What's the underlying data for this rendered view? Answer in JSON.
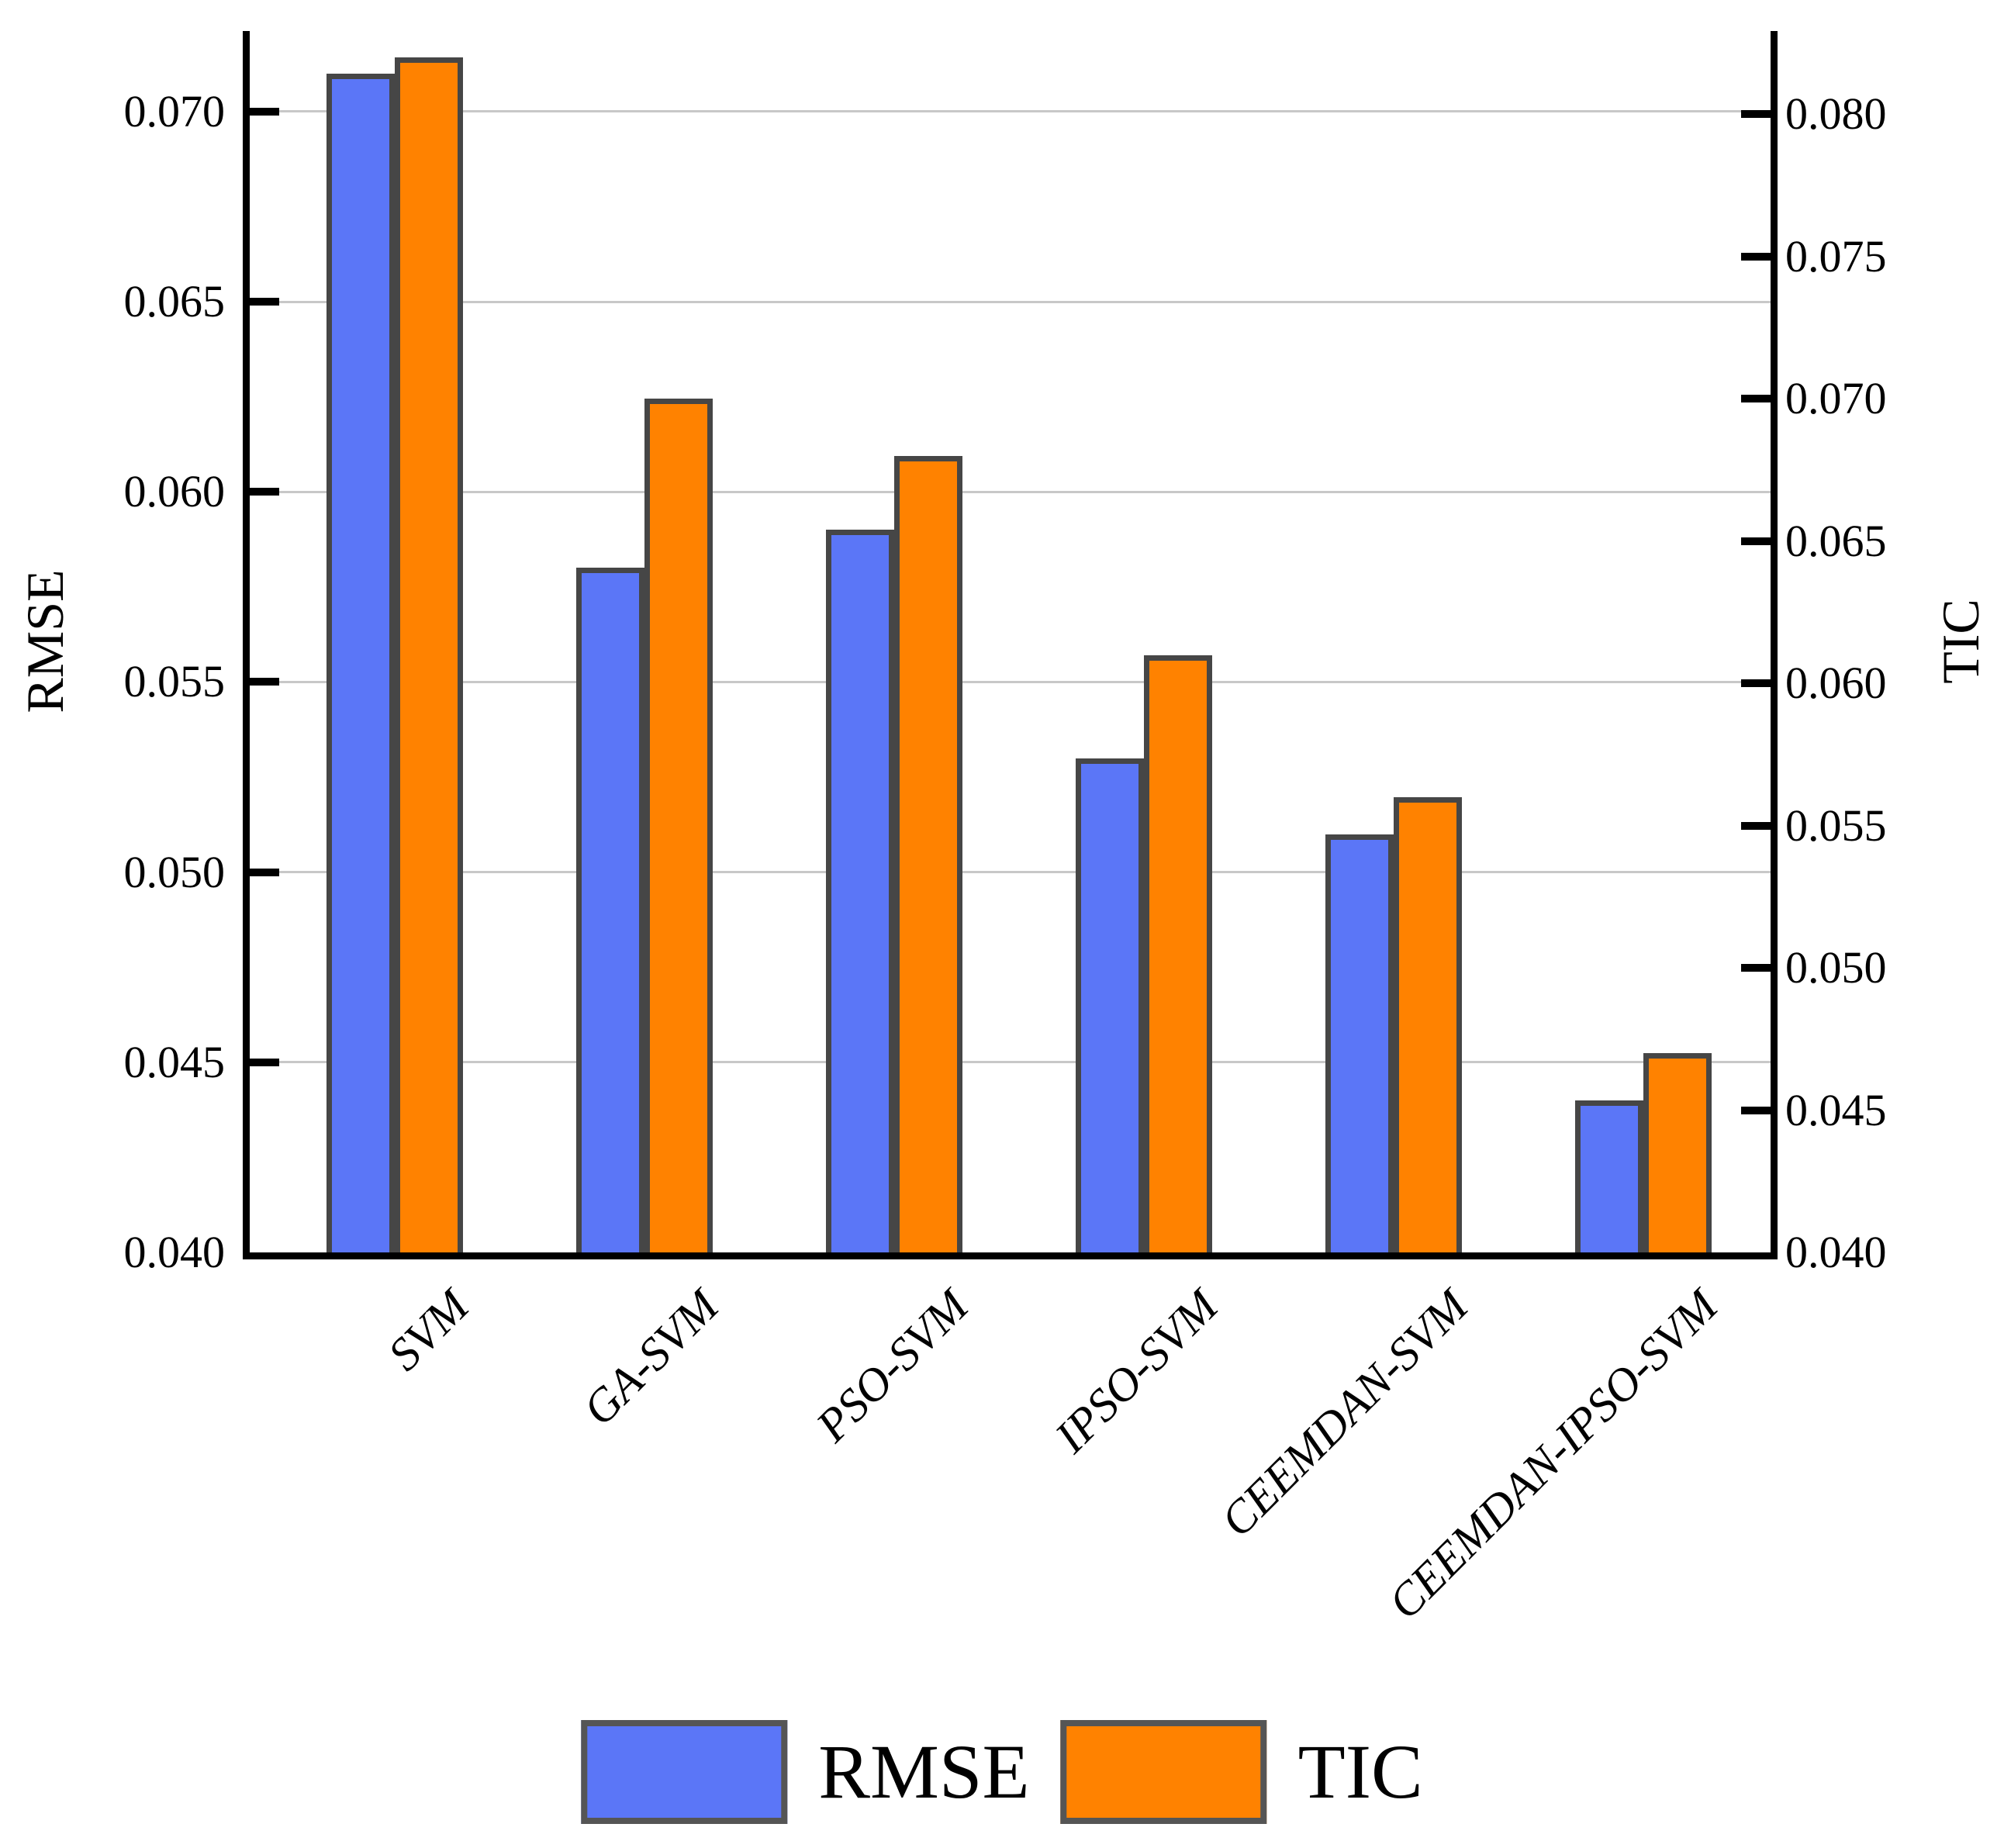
{
  "chart_data": {
    "type": "bar",
    "categories": [
      "SVM",
      "GA-SVM",
      "PSO-SVM",
      "IPSO-SVM",
      "CEEMDAN-SVM",
      "CEEMDAN-IPSO-SVM"
    ],
    "series": [
      {
        "name": "RMSE",
        "axis": "left",
        "color": "#5b76f7",
        "values": [
          0.071,
          0.058,
          0.059,
          0.053,
          0.051,
          0.044
        ]
      },
      {
        "name": "TIC",
        "axis": "right",
        "color": "#ff8200",
        "values": [
          0.082,
          0.07,
          0.068,
          0.061,
          0.056,
          0.047
        ]
      }
    ],
    "left_axis": {
      "label": "RMSE",
      "tick_labels": [
        "0.040",
        "0.045",
        "0.050",
        "0.055",
        "0.060",
        "0.065",
        "0.070"
      ],
      "tick_values": [
        0.04,
        0.045,
        0.05,
        0.055,
        0.06,
        0.065,
        0.07
      ],
      "min": 0.04,
      "max": 0.07212
    },
    "right_axis": {
      "label": "TIC",
      "tick_labels": [
        "0.040",
        "0.045",
        "0.050",
        "0.055",
        "0.060",
        "0.065",
        "0.070",
        "0.075",
        "0.080"
      ],
      "tick_values": [
        0.04,
        0.045,
        0.05,
        0.055,
        0.06,
        0.065,
        0.07,
        0.075,
        0.08
      ],
      "min": 0.04,
      "max": 0.08293
    },
    "legend": [
      {
        "label": "RMSE",
        "color": "#5b76f7"
      },
      {
        "label": "TIC",
        "color": "#ff8200"
      }
    ],
    "grid": {
      "horizontal": true,
      "on_left_ticks": true,
      "color": "#c8c8c8"
    },
    "legend_position": "bottom-center"
  },
  "colors": {
    "bar_border": "#464646",
    "spine": "#000000",
    "gridline": "#c8c8c8",
    "swatch_border": "#555555",
    "background": "#ffffff"
  }
}
